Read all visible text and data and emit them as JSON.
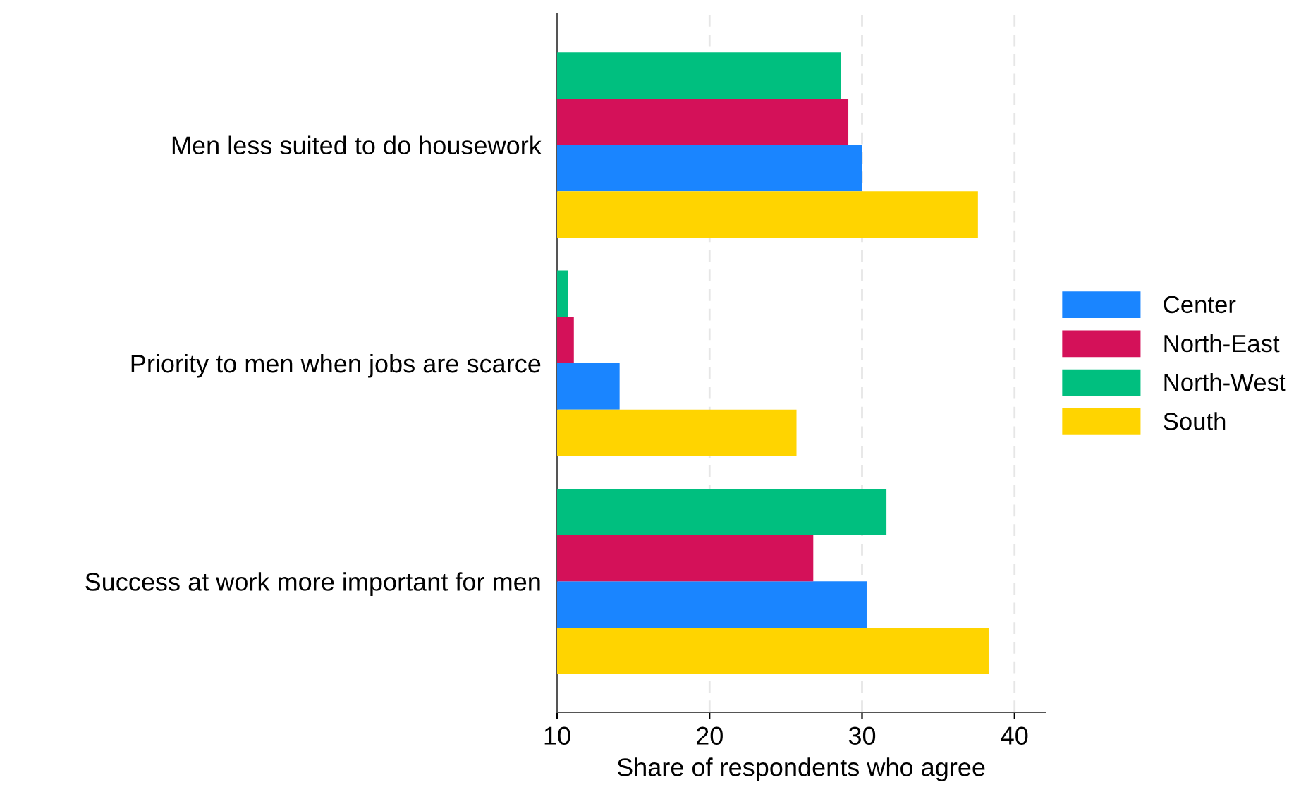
{
  "chart_data": {
    "type": "bar",
    "orientation": "horizontal",
    "xlabel": "Share of respondents who agree",
    "categories": [
      "Men less suited to do housework",
      "Priority to men when jobs are scarce",
      "Success at work more important for men"
    ],
    "series": [
      {
        "name": "Center",
        "color": "#1a85ff",
        "values": [
          30.0,
          14.1,
          30.3
        ]
      },
      {
        "name": "North-East",
        "color": "#d41159",
        "values": [
          29.1,
          11.1,
          26.8
        ]
      },
      {
        "name": "North-West",
        "color": "#00bf7f",
        "values": [
          28.6,
          10.7,
          31.6
        ]
      },
      {
        "name": "South",
        "color": "#ffd400",
        "values": [
          37.6,
          25.7,
          38.3
        ]
      }
    ],
    "xlim": [
      10,
      42
    ],
    "xticks": [
      10,
      20,
      30,
      40
    ],
    "grid": "x",
    "legend": "right"
  }
}
